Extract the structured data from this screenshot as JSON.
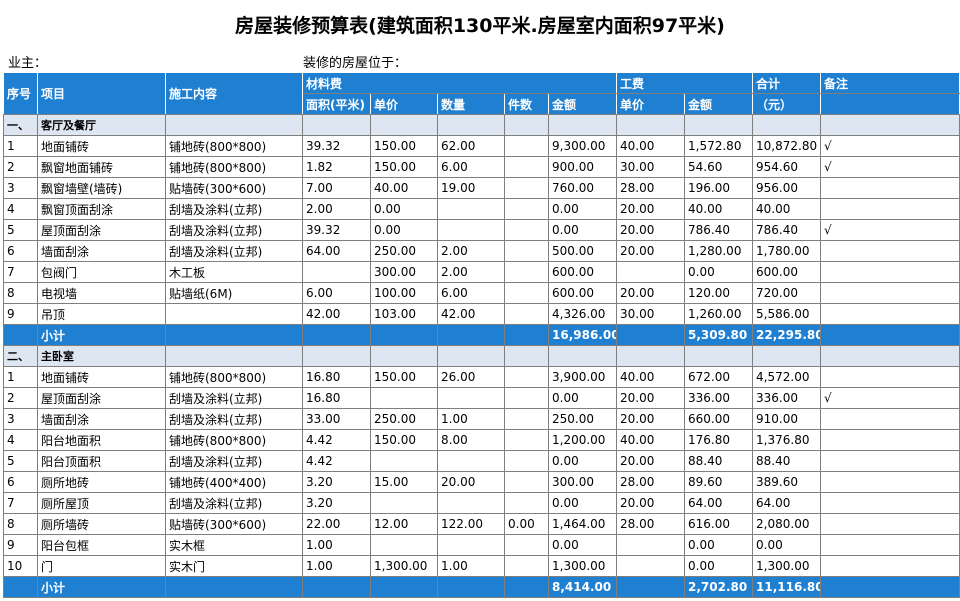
{
  "title": "房屋装修预算表(建筑面积130平米.房屋室内面积97平米)",
  "owner_label": "业主：",
  "location_label": "装修的房屋位于：",
  "headers": {
    "no": "序号",
    "item": "项目",
    "content": "施工内容",
    "material_group": "材料费",
    "labor_group": "工费",
    "total_group": "合计",
    "remark": "备注",
    "area": "面积(平米)",
    "unit_price": "单价",
    "qty": "数量",
    "pieces": "件数",
    "amount": "金额",
    "labor_unit_price": "单价",
    "labor_amount": "金额",
    "total_unit": "（元）"
  },
  "sections": [
    {
      "no": "一、",
      "name": "客厅及餐厅",
      "rows": [
        {
          "no": "1",
          "item": "地面铺砖",
          "content": "铺地砖(800*800)",
          "area": "39.32",
          "price": "150.00",
          "qty": "62.00",
          "pcs": "",
          "amount": "9,300.00",
          "lprice": "40.00",
          "lamount": "1,572.80",
          "total": "10,872.80",
          "remark": "√"
        },
        {
          "no": "2",
          "item": "飘窗地面铺砖",
          "content": "铺地砖(800*800)",
          "area": "1.82",
          "price": "150.00",
          "qty": "6.00",
          "pcs": "",
          "amount": "900.00",
          "lprice": "30.00",
          "lamount": "54.60",
          "total": "954.60",
          "remark": "√"
        },
        {
          "no": "3",
          "item": "飘窗墙壁(墙砖)",
          "content": "贴墙砖(300*600)",
          "area": "7.00",
          "price": "40.00",
          "qty": "19.00",
          "pcs": "",
          "amount": "760.00",
          "lprice": "28.00",
          "lamount": "196.00",
          "total": "956.00",
          "remark": ""
        },
        {
          "no": "4",
          "item": "飘窗顶面刮涂",
          "content": "刮墙及涂料(立邦)",
          "area": "2.00",
          "price": "0.00",
          "qty": "",
          "pcs": "",
          "amount": "0.00",
          "lprice": "20.00",
          "lamount": "40.00",
          "total": "40.00",
          "remark": ""
        },
        {
          "no": "5",
          "item": "屋顶面刮涂",
          "content": "刮墙及涂料(立邦)",
          "area": "39.32",
          "price": "0.00",
          "qty": "",
          "pcs": "",
          "amount": "0.00",
          "lprice": "20.00",
          "lamount": "786.40",
          "total": "786.40",
          "remark": "√"
        },
        {
          "no": "6",
          "item": "墙面刮涂",
          "content": "刮墙及涂料(立邦)",
          "area": "64.00",
          "price": "250.00",
          "qty": "2.00",
          "pcs": "",
          "amount": "500.00",
          "lprice": "20.00",
          "lamount": "1,280.00",
          "total": "1,780.00",
          "remark": ""
        },
        {
          "no": "7",
          "item": "包阀门",
          "content": "木工板",
          "area": "",
          "price": "300.00",
          "qty": "2.00",
          "pcs": "",
          "amount": "600.00",
          "lprice": "",
          "lamount": "0.00",
          "total": "600.00",
          "remark": ""
        },
        {
          "no": "8",
          "item": "电视墙",
          "content": "贴墙纸(6M)",
          "area": "6.00",
          "price": "100.00",
          "qty": "6.00",
          "pcs": "",
          "amount": "600.00",
          "lprice": "20.00",
          "lamount": "120.00",
          "total": "720.00",
          "remark": ""
        },
        {
          "no": "9",
          "item": "吊顶",
          "content": "",
          "area": "42.00",
          "price": "103.00",
          "qty": "42.00",
          "pcs": "",
          "amount": "4,326.00",
          "lprice": "30.00",
          "lamount": "1,260.00",
          "total": "5,586.00",
          "remark": ""
        }
      ],
      "subtotal": {
        "label": "小计",
        "amount": "16,986.00",
        "lamount": "5,309.80",
        "total": "22,295.80"
      }
    },
    {
      "no": "二、",
      "name": "主卧室",
      "rows": [
        {
          "no": "1",
          "item": "地面铺砖",
          "content": "铺地砖(800*800)",
          "area": "16.80",
          "price": "150.00",
          "qty": "26.00",
          "pcs": "",
          "amount": "3,900.00",
          "lprice": "40.00",
          "lamount": "672.00",
          "total": "4,572.00",
          "remark": ""
        },
        {
          "no": "2",
          "item": "屋顶面刮涂",
          "content": "刮墙及涂料(立邦)",
          "area": "16.80",
          "price": "",
          "qty": "",
          "pcs": "",
          "amount": "0.00",
          "lprice": "20.00",
          "lamount": "336.00",
          "total": "336.00",
          "remark": "√"
        },
        {
          "no": "3",
          "item": "墙面刮涂",
          "content": "刮墙及涂料(立邦)",
          "area": "33.00",
          "price": "250.00",
          "qty": "1.00",
          "pcs": "",
          "amount": "250.00",
          "lprice": "20.00",
          "lamount": "660.00",
          "total": "910.00",
          "remark": ""
        },
        {
          "no": "4",
          "item": "阳台地面积",
          "content": "铺地砖(800*800)",
          "area": "4.42",
          "price": "150.00",
          "qty": "8.00",
          "pcs": "",
          "amount": "1,200.00",
          "lprice": "40.00",
          "lamount": "176.80",
          "total": "1,376.80",
          "remark": ""
        },
        {
          "no": "5",
          "item": "阳台顶面积",
          "content": "刮墙及涂料(立邦)",
          "area": "4.42",
          "price": "",
          "qty": "",
          "pcs": "",
          "amount": "0.00",
          "lprice": "20.00",
          "lamount": "88.40",
          "total": "88.40",
          "remark": ""
        },
        {
          "no": "6",
          "item": "厕所地砖",
          "content": "铺地砖(400*400)",
          "area": "3.20",
          "price": "15.00",
          "qty": "20.00",
          "pcs": "",
          "amount": "300.00",
          "lprice": "28.00",
          "lamount": "89.60",
          "total": "389.60",
          "remark": ""
        },
        {
          "no": "7",
          "item": "厕所屋顶",
          "content": "刮墙及涂料(立邦)",
          "area": "3.20",
          "price": "",
          "qty": "",
          "pcs": "",
          "amount": "0.00",
          "lprice": "20.00",
          "lamount": "64.00",
          "total": "64.00",
          "remark": ""
        },
        {
          "no": "8",
          "item": "厕所墙砖",
          "content": "贴墙砖(300*600)",
          "area": "22.00",
          "price": "12.00",
          "qty": "122.00",
          "pcs": "0.00",
          "amount": "1,464.00",
          "lprice": "28.00",
          "lamount": "616.00",
          "total": "2,080.00",
          "remark": ""
        },
        {
          "no": "9",
          "item": "阳台包框",
          "content": "实木框",
          "area": "1.00",
          "price": "",
          "qty": "",
          "pcs": "",
          "amount": "0.00",
          "lprice": "",
          "lamount": "0.00",
          "total": "0.00",
          "remark": ""
        },
        {
          "no": "10",
          "item": "门",
          "content": "实木门",
          "area": "1.00",
          "price": "1,300.00",
          "qty": "1.00",
          "pcs": "",
          "amount": "1,300.00",
          "lprice": "",
          "lamount": "0.00",
          "total": "1,300.00",
          "remark": ""
        }
      ],
      "subtotal": {
        "label": "小计",
        "amount": "8,414.00",
        "lamount": "2,702.80",
        "total": "11,116.80"
      }
    }
  ]
}
